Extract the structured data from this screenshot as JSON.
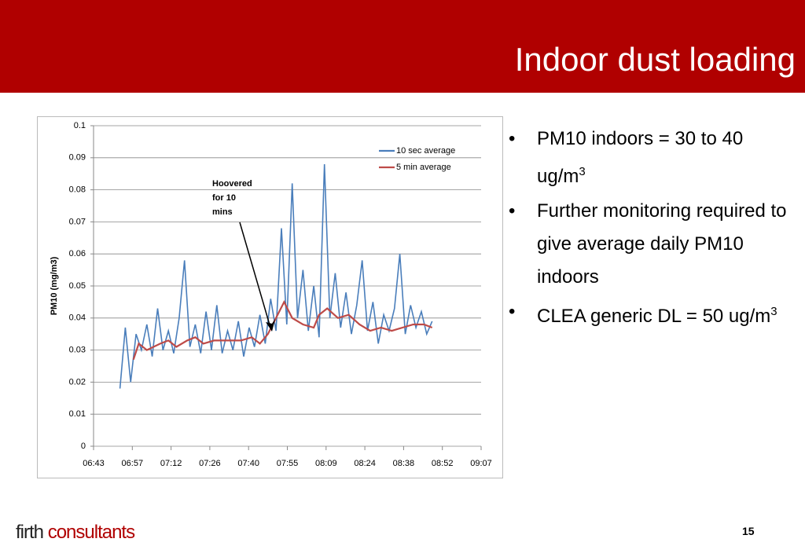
{
  "slide_title": "Indoor dust loading",
  "bullets": [
    {
      "text": "PM10 indoors = 30 to 40 ug/m",
      "sup": "3"
    },
    {
      "text": "Further monitoring required to give average daily PM10 indoors"
    },
    {
      "text": "CLEA generic DL = 50 ug/m",
      "sup": "3"
    }
  ],
  "logo": [
    "firth",
    "consultants"
  ],
  "page_number": "15",
  "chart_data": {
    "type": "line",
    "y_label": "PM10 (mg/m3)",
    "annotation": [
      "Hoovered",
      "for 10",
      "mins"
    ],
    "legend": "top-right",
    "grid": true,
    "ylim": [
      0,
      0.1
    ],
    "yticks": [
      0,
      0.01,
      0.02,
      0.03,
      0.04,
      0.05,
      0.06,
      0.07,
      0.08,
      0.09,
      0.1
    ],
    "xlim": [
      403.2,
      547.2
    ],
    "xticks": [
      {
        "value": 403.2,
        "label": "06:43"
      },
      {
        "value": 417.6,
        "label": "06:57"
      },
      {
        "value": 432,
        "label": "07:12"
      },
      {
        "value": 446.4,
        "label": "07:26"
      },
      {
        "value": 460.8,
        "label": "07:40"
      },
      {
        "value": 475.2,
        "label": "07:55"
      },
      {
        "value": 489.6,
        "label": "08:09"
      },
      {
        "value": 504,
        "label": "08:24"
      },
      {
        "value": 518.4,
        "label": "08:38"
      },
      {
        "value": 532.8,
        "label": "08:52"
      },
      {
        "value": 547.2,
        "label": "09:07"
      }
    ],
    "series": [
      {
        "name": "10 sec average",
        "color": "#4a7ebb",
        "x": [
          413,
          415,
          417,
          419,
          421,
          423,
          425,
          427,
          429,
          431,
          433,
          435,
          437,
          439,
          441,
          443,
          445,
          447,
          449,
          451,
          453,
          455,
          457,
          459,
          461,
          463,
          465,
          467,
          469,
          471,
          473,
          475,
          477,
          479,
          481,
          483,
          485,
          487,
          489,
          491,
          493,
          495,
          497,
          499,
          501,
          503,
          505,
          507,
          509,
          511,
          513,
          515,
          517,
          519,
          521,
          523,
          525,
          527,
          529
        ],
        "values": [
          0.018,
          0.037,
          0.02,
          0.035,
          0.03,
          0.038,
          0.028,
          0.043,
          0.03,
          0.036,
          0.029,
          0.04,
          0.058,
          0.031,
          0.038,
          0.029,
          0.042,
          0.03,
          0.044,
          0.029,
          0.036,
          0.03,
          0.039,
          0.028,
          0.037,
          0.031,
          0.041,
          0.032,
          0.046,
          0.036,
          0.068,
          0.038,
          0.082,
          0.04,
          0.055,
          0.036,
          0.05,
          0.034,
          0.088,
          0.04,
          0.054,
          0.037,
          0.048,
          0.035,
          0.044,
          0.058,
          0.036,
          0.045,
          0.032,
          0.041,
          0.036,
          0.043,
          0.06,
          0.035,
          0.044,
          0.037,
          0.042,
          0.035,
          0.039
        ]
      },
      {
        "name": "5 min average",
        "color": "#be4b48",
        "x": [
          418,
          420,
          423,
          428,
          431,
          434,
          438,
          441,
          444,
          448,
          453,
          458,
          462,
          465,
          468,
          471,
          474,
          477,
          481,
          485,
          487,
          490,
          494,
          498,
          502,
          506,
          510,
          514,
          518,
          522,
          526,
          529
        ],
        "values": [
          0.027,
          0.032,
          0.03,
          0.032,
          0.033,
          0.031,
          0.033,
          0.034,
          0.032,
          0.033,
          0.033,
          0.033,
          0.034,
          0.032,
          0.035,
          0.04,
          0.045,
          0.04,
          0.038,
          0.037,
          0.041,
          0.043,
          0.04,
          0.041,
          0.038,
          0.036,
          0.037,
          0.036,
          0.037,
          0.038,
          0.038,
          0.037
        ]
      }
    ]
  }
}
